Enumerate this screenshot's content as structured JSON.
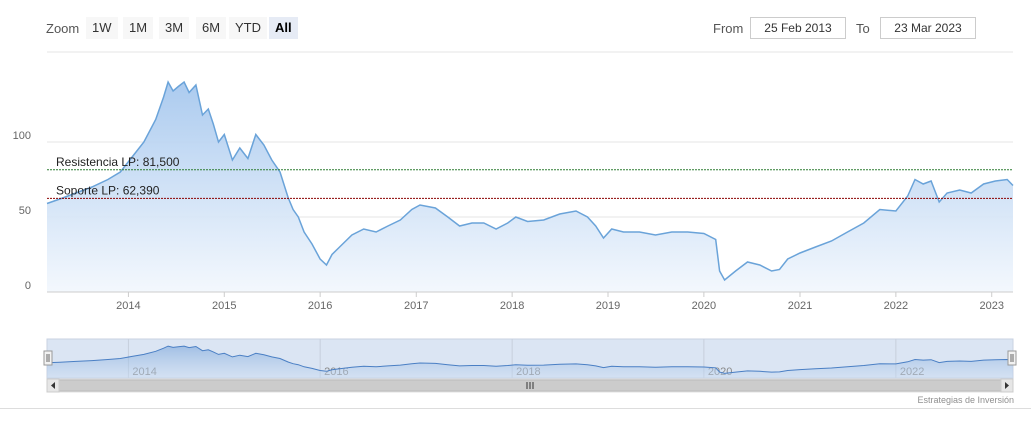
{
  "toolbar": {
    "zoom_label": "Zoom",
    "buttons": [
      "1W",
      "1M",
      "3M",
      "6M",
      "YTD",
      "All"
    ],
    "active": "All",
    "from_label": "From",
    "from_value": "25 Feb 2013",
    "to_label": "To",
    "to_value": "23 Mar 2023"
  },
  "credits": "Estrategias de Inversión",
  "chart_data": {
    "type": "area",
    "title": "",
    "xlabel": "",
    "ylabel": "",
    "ylim": [
      0,
      160
    ],
    "y_ticks": [
      0,
      50,
      100
    ],
    "x_ticks": [
      "2014",
      "2015",
      "2016",
      "2017",
      "2018",
      "2019",
      "2020",
      "2021",
      "2022",
      "2023"
    ],
    "grid": true,
    "colors": {
      "line": "#6aa3d9",
      "fill_top": "#a7c8ee",
      "fill_bottom": "#f2f7fd",
      "resistance": "#2e7d32",
      "support": "#8b0000"
    },
    "plot_lines": [
      {
        "label": "Resistencia LP: 81,500",
        "value": 81.5
      },
      {
        "label": "Soporte LP: 62,390",
        "value": 62.39
      }
    ],
    "series": [
      {
        "values": [
          [
            "2013-02-25",
            59
          ],
          [
            "2013-04-15",
            62
          ],
          [
            "2013-06-15",
            66
          ],
          [
            "2013-08-15",
            70
          ],
          [
            "2013-10-15",
            75
          ],
          [
            "2013-12-01",
            80
          ],
          [
            "2014-01-15",
            90
          ],
          [
            "2014-03-01",
            100
          ],
          [
            "2014-04-15",
            115
          ],
          [
            "2014-05-15",
            130
          ],
          [
            "2014-06-01",
            140
          ],
          [
            "2014-06-20",
            134
          ],
          [
            "2014-07-10",
            137
          ],
          [
            "2014-08-01",
            140
          ],
          [
            "2014-08-20",
            133
          ],
          [
            "2014-09-15",
            138
          ],
          [
            "2014-10-10",
            118
          ],
          [
            "2014-11-01",
            122
          ],
          [
            "2014-11-20",
            112
          ],
          [
            "2014-12-10",
            100
          ],
          [
            "2015-01-01",
            105
          ],
          [
            "2015-02-01",
            88
          ],
          [
            "2015-03-01",
            96
          ],
          [
            "2015-04-01",
            89
          ],
          [
            "2015-05-01",
            105
          ],
          [
            "2015-06-01",
            98
          ],
          [
            "2015-07-01",
            88
          ],
          [
            "2015-08-01",
            80
          ],
          [
            "2015-09-01",
            63
          ],
          [
            "2015-09-20",
            55
          ],
          [
            "2015-10-10",
            50
          ],
          [
            "2015-11-01",
            40
          ],
          [
            "2015-12-01",
            32
          ],
          [
            "2016-01-01",
            22
          ],
          [
            "2016-01-25",
            18
          ],
          [
            "2016-02-15",
            25
          ],
          [
            "2016-03-15",
            30
          ],
          [
            "2016-05-01",
            38
          ],
          [
            "2016-06-15",
            42
          ],
          [
            "2016-08-01",
            40
          ],
          [
            "2016-09-15",
            44
          ],
          [
            "2016-11-01",
            48
          ],
          [
            "2016-12-15",
            55
          ],
          [
            "2017-01-15",
            58
          ],
          [
            "2017-03-15",
            56
          ],
          [
            "2017-05-01",
            50
          ],
          [
            "2017-06-15",
            44
          ],
          [
            "2017-08-01",
            46
          ],
          [
            "2017-09-15",
            46
          ],
          [
            "2017-11-01",
            42
          ],
          [
            "2017-12-15",
            46
          ],
          [
            "2018-01-15",
            50
          ],
          [
            "2018-03-01",
            47
          ],
          [
            "2018-05-01",
            48
          ],
          [
            "2018-07-01",
            52
          ],
          [
            "2018-09-01",
            54
          ],
          [
            "2018-10-15",
            50
          ],
          [
            "2018-11-15",
            44
          ],
          [
            "2018-12-15",
            36
          ],
          [
            "2019-01-15",
            42
          ],
          [
            "2019-03-01",
            40
          ],
          [
            "2019-05-01",
            40
          ],
          [
            "2019-07-01",
            38
          ],
          [
            "2019-09-01",
            40
          ],
          [
            "2019-11-01",
            40
          ],
          [
            "2020-01-01",
            39
          ],
          [
            "2020-02-15",
            35
          ],
          [
            "2020-03-01",
            14
          ],
          [
            "2020-03-20",
            8
          ],
          [
            "2020-05-01",
            14
          ],
          [
            "2020-06-15",
            20
          ],
          [
            "2020-08-01",
            18
          ],
          [
            "2020-09-15",
            14
          ],
          [
            "2020-10-15",
            15
          ],
          [
            "2020-11-15",
            22
          ],
          [
            "2021-01-01",
            26
          ],
          [
            "2021-03-01",
            30
          ],
          [
            "2021-05-01",
            34
          ],
          [
            "2021-07-01",
            40
          ],
          [
            "2021-09-01",
            46
          ],
          [
            "2021-11-01",
            55
          ],
          [
            "2022-01-01",
            54
          ],
          [
            "2022-02-15",
            64
          ],
          [
            "2022-03-15",
            75
          ],
          [
            "2022-04-15",
            72
          ],
          [
            "2022-05-15",
            74
          ],
          [
            "2022-06-15",
            60
          ],
          [
            "2022-07-15",
            66
          ],
          [
            "2022-09-01",
            68
          ],
          [
            "2022-10-15",
            66
          ],
          [
            "2022-12-01",
            72
          ],
          [
            "2023-01-15",
            74
          ],
          [
            "2023-03-01",
            75
          ],
          [
            "2023-03-23",
            71
          ]
        ]
      }
    ]
  },
  "navigator": {
    "labels": [
      "2014",
      "2016",
      "2018",
      "2020",
      "2022"
    ],
    "range": [
      "2013-02-25",
      "2023-03-23"
    ]
  }
}
